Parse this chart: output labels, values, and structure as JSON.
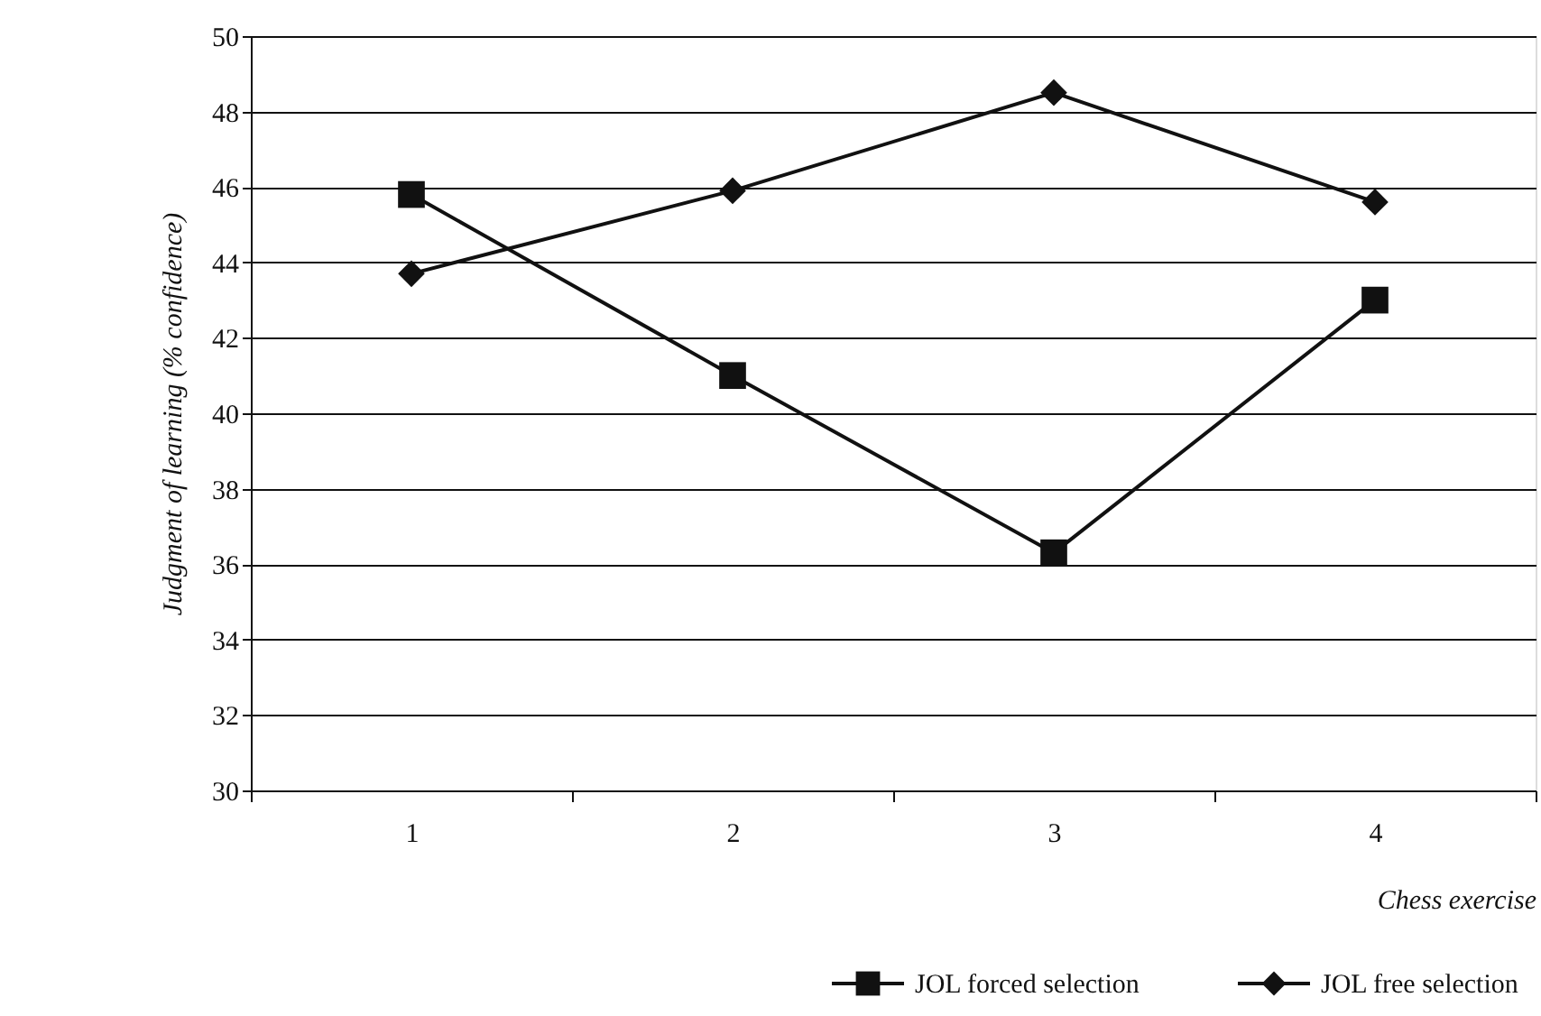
{
  "chart_data": {
    "type": "line",
    "xlabel": "Chess exercise",
    "ylabel": "Judgment of learning  (% confidence)",
    "categories": [
      "1",
      "2",
      "3",
      "4"
    ],
    "series": [
      {
        "name": "JOL forced selection",
        "color": "#111111",
        "marker": "square",
        "values": [
          45.8,
          41.0,
          36.3,
          43.0
        ]
      },
      {
        "name": "JOL free selection",
        "color": "#111111",
        "marker": "diamond",
        "values": [
          43.7,
          45.9,
          48.5,
          45.6
        ]
      }
    ],
    "ylim": [
      30,
      50
    ],
    "yticks": [
      30,
      32,
      34,
      36,
      38,
      40,
      42,
      44,
      46,
      48,
      50
    ],
    "grid": "y",
    "legend": "bottom right",
    "line_style": "solid"
  }
}
